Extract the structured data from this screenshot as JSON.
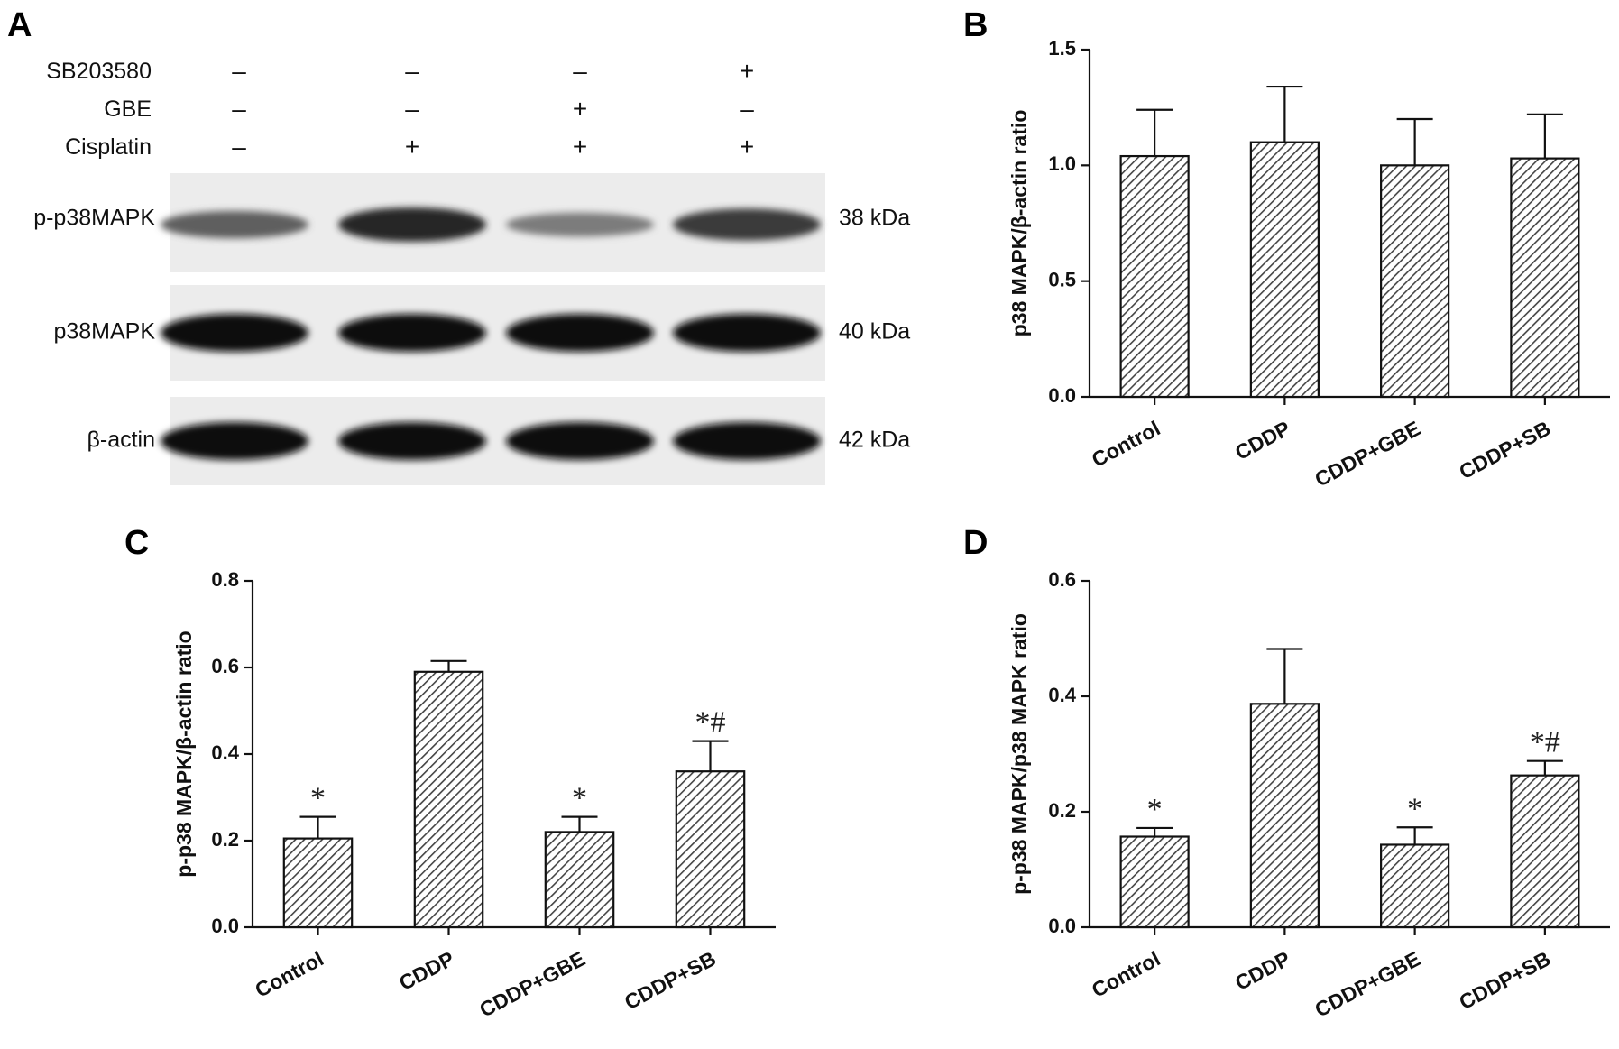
{
  "panel_a": {
    "letter": "A",
    "conditions": [
      {
        "label": "SB203580",
        "signs": [
          "–",
          "–",
          "–",
          "+"
        ]
      },
      {
        "label": "GBE",
        "signs": [
          "–",
          "–",
          "+",
          "–"
        ]
      },
      {
        "label": "Cisplatin",
        "signs": [
          "–",
          "+",
          "+",
          "+"
        ]
      }
    ],
    "blots": [
      {
        "label": "p-p38MAPK",
        "kda": "38 kDa",
        "intensities": [
          0.55,
          0.85,
          0.4,
          0.75
        ]
      },
      {
        "label": "p38MAPK",
        "kda": "40 kDa",
        "intensities": [
          1.0,
          1.0,
          1.0,
          1.0
        ]
      },
      {
        "label": "β-actin",
        "kda": "42 kDa",
        "intensities": [
          1.0,
          1.0,
          1.0,
          1.0
        ]
      }
    ]
  },
  "chart_data": [
    {
      "panel": "B",
      "type": "bar",
      "categories": [
        "Control",
        "CDDP",
        "CDDP+GBE",
        "CDDP+SB"
      ],
      "values": [
        1.04,
        1.1,
        1.0,
        1.03
      ],
      "errors": [
        0.2,
        0.24,
        0.2,
        0.19
      ],
      "annotations": [
        "",
        "",
        "",
        ""
      ],
      "ylabel": "p38 MAPK/β-actin ratio",
      "ylim": [
        0,
        1.5
      ],
      "yticks": [
        "0.0",
        "0.5",
        "1.0",
        "1.5"
      ],
      "fill": "hatched",
      "bar_color": "#555555"
    },
    {
      "panel": "C",
      "type": "bar",
      "categories": [
        "Control",
        "CDDP",
        "CDDP+GBE",
        "CDDP+SB"
      ],
      "values": [
        0.205,
        0.59,
        0.22,
        0.36
      ],
      "errors": [
        0.05,
        0.025,
        0.035,
        0.07
      ],
      "annotations": [
        "*",
        "",
        "*",
        "*#"
      ],
      "ylabel": "p-p38 MAPK/β-actin ratio",
      "ylim": [
        0,
        0.8
      ],
      "yticks": [
        "0.0",
        "0.2",
        "0.4",
        "0.6",
        "0.8"
      ],
      "fill": "hatched",
      "bar_color": "#555555"
    },
    {
      "panel": "D",
      "type": "bar",
      "categories": [
        "Control",
        "CDDP",
        "CDDP+GBE",
        "CDDP+SB"
      ],
      "values": [
        0.157,
        0.387,
        0.143,
        0.263
      ],
      "errors": [
        0.015,
        0.095,
        0.03,
        0.025
      ],
      "annotations": [
        "*",
        "",
        "*",
        "*#"
      ],
      "ylabel": "p-p38 MAPK/p38 MAPK ratio",
      "ylim": [
        0,
        0.6
      ],
      "yticks": [
        "0.0",
        "0.2",
        "0.4",
        "0.6"
      ],
      "fill": "hatched",
      "bar_color": "#555555"
    }
  ]
}
